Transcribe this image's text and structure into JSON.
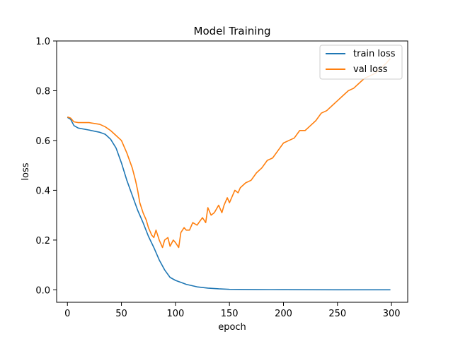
{
  "chart_data": {
    "type": "line",
    "title": "Model Training",
    "xlabel": "epoch",
    "ylabel": "loss",
    "xlim": [
      -10,
      315
    ],
    "ylim": [
      -0.05,
      1.0
    ],
    "xticks": [
      0,
      50,
      100,
      150,
      200,
      250,
      300
    ],
    "yticks": [
      0.0,
      0.2,
      0.4,
      0.6,
      0.8,
      1.0
    ],
    "ytick_labels": [
      "0.0",
      "0.2",
      "0.4",
      "0.6",
      "0.8",
      "1.0"
    ],
    "legend_position": "top-right",
    "series": [
      {
        "name": "train loss",
        "color": "#1f77b4",
        "points": [
          [
            0,
            0.693
          ],
          [
            3,
            0.685
          ],
          [
            6,
            0.66
          ],
          [
            10,
            0.65
          ],
          [
            20,
            0.642
          ],
          [
            30,
            0.633
          ],
          [
            35,
            0.625
          ],
          [
            40,
            0.605
          ],
          [
            45,
            0.57
          ],
          [
            50,
            0.51
          ],
          [
            55,
            0.44
          ],
          [
            60,
            0.38
          ],
          [
            65,
            0.32
          ],
          [
            70,
            0.27
          ],
          [
            75,
            0.215
          ],
          [
            80,
            0.17
          ],
          [
            85,
            0.12
          ],
          [
            90,
            0.08
          ],
          [
            95,
            0.05
          ],
          [
            100,
            0.038
          ],
          [
            105,
            0.03
          ],
          [
            110,
            0.022
          ],
          [
            120,
            0.012
          ],
          [
            130,
            0.007
          ],
          [
            140,
            0.004
          ],
          [
            150,
            0.002
          ],
          [
            175,
            0.001
          ],
          [
            200,
            0.0005
          ],
          [
            250,
            0.0002
          ],
          [
            299,
            0.0001
          ]
        ]
      },
      {
        "name": "val loss",
        "color": "#ff7f0e",
        "points": [
          [
            0,
            0.695
          ],
          [
            3,
            0.69
          ],
          [
            6,
            0.675
          ],
          [
            10,
            0.672
          ],
          [
            20,
            0.672
          ],
          [
            30,
            0.665
          ],
          [
            35,
            0.655
          ],
          [
            40,
            0.64
          ],
          [
            45,
            0.62
          ],
          [
            50,
            0.6
          ],
          [
            55,
            0.55
          ],
          [
            60,
            0.49
          ],
          [
            63,
            0.44
          ],
          [
            65,
            0.4
          ],
          [
            67,
            0.35
          ],
          [
            70,
            0.31
          ],
          [
            73,
            0.28
          ],
          [
            75,
            0.25
          ],
          [
            78,
            0.22
          ],
          [
            80,
            0.21
          ],
          [
            82,
            0.24
          ],
          [
            85,
            0.2
          ],
          [
            88,
            0.17
          ],
          [
            90,
            0.2
          ],
          [
            93,
            0.21
          ],
          [
            95,
            0.175
          ],
          [
            98,
            0.2
          ],
          [
            100,
            0.19
          ],
          [
            103,
            0.17
          ],
          [
            105,
            0.23
          ],
          [
            108,
            0.25
          ],
          [
            110,
            0.24
          ],
          [
            113,
            0.24
          ],
          [
            116,
            0.27
          ],
          [
            120,
            0.26
          ],
          [
            125,
            0.29
          ],
          [
            128,
            0.27
          ],
          [
            130,
            0.33
          ],
          [
            133,
            0.3
          ],
          [
            136,
            0.31
          ],
          [
            140,
            0.34
          ],
          [
            143,
            0.31
          ],
          [
            145,
            0.34
          ],
          [
            148,
            0.37
          ],
          [
            150,
            0.35
          ],
          [
            153,
            0.38
          ],
          [
            155,
            0.4
          ],
          [
            158,
            0.39
          ],
          [
            160,
            0.41
          ],
          [
            165,
            0.43
          ],
          [
            170,
            0.44
          ],
          [
            175,
            0.47
          ],
          [
            180,
            0.49
          ],
          [
            185,
            0.52
          ],
          [
            190,
            0.53
          ],
          [
            195,
            0.56
          ],
          [
            200,
            0.59
          ],
          [
            205,
            0.6
          ],
          [
            210,
            0.61
          ],
          [
            215,
            0.64
          ],
          [
            220,
            0.64
          ],
          [
            225,
            0.66
          ],
          [
            230,
            0.68
          ],
          [
            235,
            0.71
          ],
          [
            240,
            0.72
          ],
          [
            245,
            0.74
          ],
          [
            250,
            0.76
          ],
          [
            255,
            0.78
          ],
          [
            260,
            0.8
          ],
          [
            265,
            0.81
          ],
          [
            270,
            0.83
          ],
          [
            275,
            0.85
          ],
          [
            280,
            0.86
          ],
          [
            285,
            0.87
          ],
          [
            290,
            0.89
          ],
          [
            295,
            0.91
          ],
          [
            299,
            0.93
          ]
        ]
      }
    ]
  }
}
